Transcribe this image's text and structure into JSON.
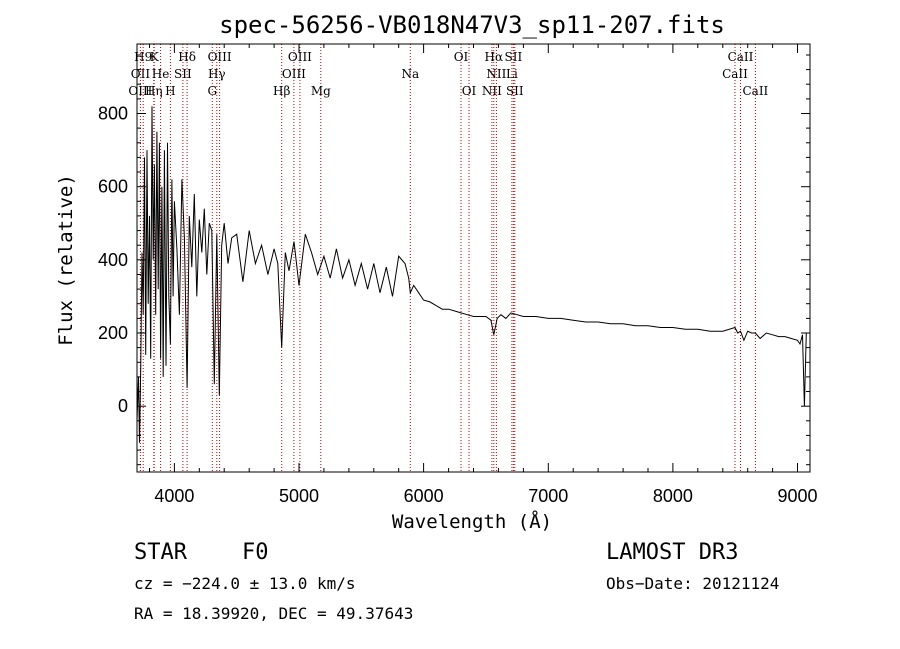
{
  "chart_data": {
    "type": "line",
    "title": "spec-56256-VB018N47V3_sp11-207.fits",
    "xlabel": "Wavelength (Å)",
    "ylabel": "Flux (relative)",
    "xlim": [
      3700,
      9100
    ],
    "ylim": [
      -180,
      990
    ],
    "xticks": [
      4000,
      5000,
      6000,
      7000,
      8000,
      9000
    ],
    "yticks": [
      0,
      200,
      400,
      600,
      800
    ],
    "series": [
      {
        "name": "flux",
        "x": [
          3700,
          3712,
          3720,
          3730,
          3740,
          3750,
          3760,
          3770,
          3780,
          3790,
          3800,
          3810,
          3820,
          3830,
          3840,
          3850,
          3860,
          3870,
          3880,
          3889,
          3900,
          3910,
          3920,
          3933,
          3945,
          3955,
          3968,
          3980,
          3990,
          4000,
          4020,
          4040,
          4060,
          4080,
          4102,
          4120,
          4140,
          4160,
          4180,
          4200,
          4220,
          4240,
          4260,
          4280,
          4300,
          4320,
          4340,
          4360,
          4380,
          4400,
          4430,
          4460,
          4500,
          4550,
          4600,
          4650,
          4700,
          4750,
          4800,
          4830,
          4861,
          4890,
          4920,
          4960,
          5000,
          5050,
          5100,
          5150,
          5200,
          5250,
          5300,
          5350,
          5400,
          5450,
          5500,
          5550,
          5600,
          5650,
          5700,
          5750,
          5800,
          5850,
          5880,
          5893,
          5920,
          5960,
          6000,
          6050,
          6100,
          6150,
          6200,
          6250,
          6300,
          6350,
          6400,
          6450,
          6500,
          6540,
          6563,
          6590,
          6620,
          6660,
          6700,
          6750,
          6800,
          6900,
          7000,
          7100,
          7200,
          7300,
          7400,
          7500,
          7600,
          7700,
          7800,
          7900,
          8000,
          8100,
          8200,
          8300,
          8400,
          8498,
          8520,
          8542,
          8570,
          8600,
          8630,
          8662,
          8700,
          8750,
          8800,
          8850,
          8900,
          8950,
          9000,
          9020,
          9040,
          9055,
          9070
        ],
        "values": [
          -40,
          80,
          -100,
          100,
          420,
          250,
          680,
          140,
          700,
          280,
          520,
          130,
          820,
          400,
          660,
          250,
          750,
          320,
          720,
          130,
          600,
          80,
          700,
          110,
          720,
          300,
          170,
          620,
          300,
          560,
          430,
          250,
          620,
          460,
          50,
          520,
          380,
          580,
          300,
          510,
          420,
          540,
          360,
          500,
          480,
          60,
          470,
          30,
          440,
          500,
          390,
          460,
          470,
          340,
          480,
          390,
          440,
          360,
          430,
          390,
          160,
          420,
          370,
          450,
          330,
          470,
          420,
          360,
          410,
          350,
          430,
          350,
          400,
          330,
          390,
          320,
          390,
          310,
          380,
          300,
          410,
          390,
          350,
          310,
          330,
          310,
          290,
          285,
          275,
          265,
          265,
          260,
          255,
          250,
          245,
          245,
          245,
          235,
          195,
          240,
          250,
          240,
          255,
          250,
          245,
          245,
          240,
          240,
          235,
          230,
          230,
          225,
          225,
          220,
          220,
          215,
          215,
          210,
          210,
          205,
          205,
          215,
          200,
          205,
          180,
          205,
          200,
          200,
          185,
          200,
          195,
          190,
          190,
          185,
          180,
          170,
          195,
          0,
          200
        ]
      }
    ],
    "spectral_lines": [
      {
        "label": "H9",
        "x": 3750,
        "row": 1
      },
      {
        "label": "K",
        "x": 3838,
        "row": 1
      },
      {
        "label": "Hδ",
        "x": 4102,
        "row": 1
      },
      {
        "label": "OIII",
        "x": 4363,
        "row": 1
      },
      {
        "label": "OIII",
        "x": 5007,
        "row": 1
      },
      {
        "label": "OI",
        "x": 6300,
        "row": 1
      },
      {
        "label": "Hα",
        "x": 6563,
        "row": 1
      },
      {
        "label": "SII",
        "x": 6720,
        "row": 1
      },
      {
        "label": "CaII",
        "x": 8542,
        "row": 1
      },
      {
        "label": "OII",
        "x": 3727,
        "row": 2
      },
      {
        "label": "He",
        "x": 3889,
        "row": 2
      },
      {
        "label": "SII",
        "x": 4068,
        "row": 2
      },
      {
        "label": "Hγ",
        "x": 4340,
        "row": 2
      },
      {
        "label": "OIII",
        "x": 4959,
        "row": 2
      },
      {
        "label": "Na",
        "x": 5893,
        "row": 2
      },
      {
        "label": "NII",
        "x": 6584,
        "row": 2
      },
      {
        "label": "Li",
        "x": 6708,
        "row": 2
      },
      {
        "label": "CaII",
        "x": 8498,
        "row": 2
      },
      {
        "label": "OIII",
        "x": 3727,
        "row": 3
      },
      {
        "label": "Hη",
        "x": 3835,
        "row": 3
      },
      {
        "label": "H",
        "x": 3968,
        "row": 3
      },
      {
        "label": "G",
        "x": 4304,
        "row": 3
      },
      {
        "label": "Hβ",
        "x": 4861,
        "row": 3
      },
      {
        "label": "Mg",
        "x": 5175,
        "row": 3
      },
      {
        "label": "OI",
        "x": 6364,
        "row": 3
      },
      {
        "label": "NII",
        "x": 6548,
        "row": 3
      },
      {
        "label": "SII",
        "x": 6731,
        "row": 3
      },
      {
        "label": "CaII",
        "x": 8662,
        "row": 3
      }
    ]
  },
  "info": {
    "class": "STAR",
    "subclass": "F0",
    "survey": "LAMOST DR3",
    "redshift": "cz = −224.0 ± 13.0 km/s",
    "obs_date": "Obs−Date: 20121124",
    "coords": "RA =  18.39920, DEC =  49.37643"
  }
}
